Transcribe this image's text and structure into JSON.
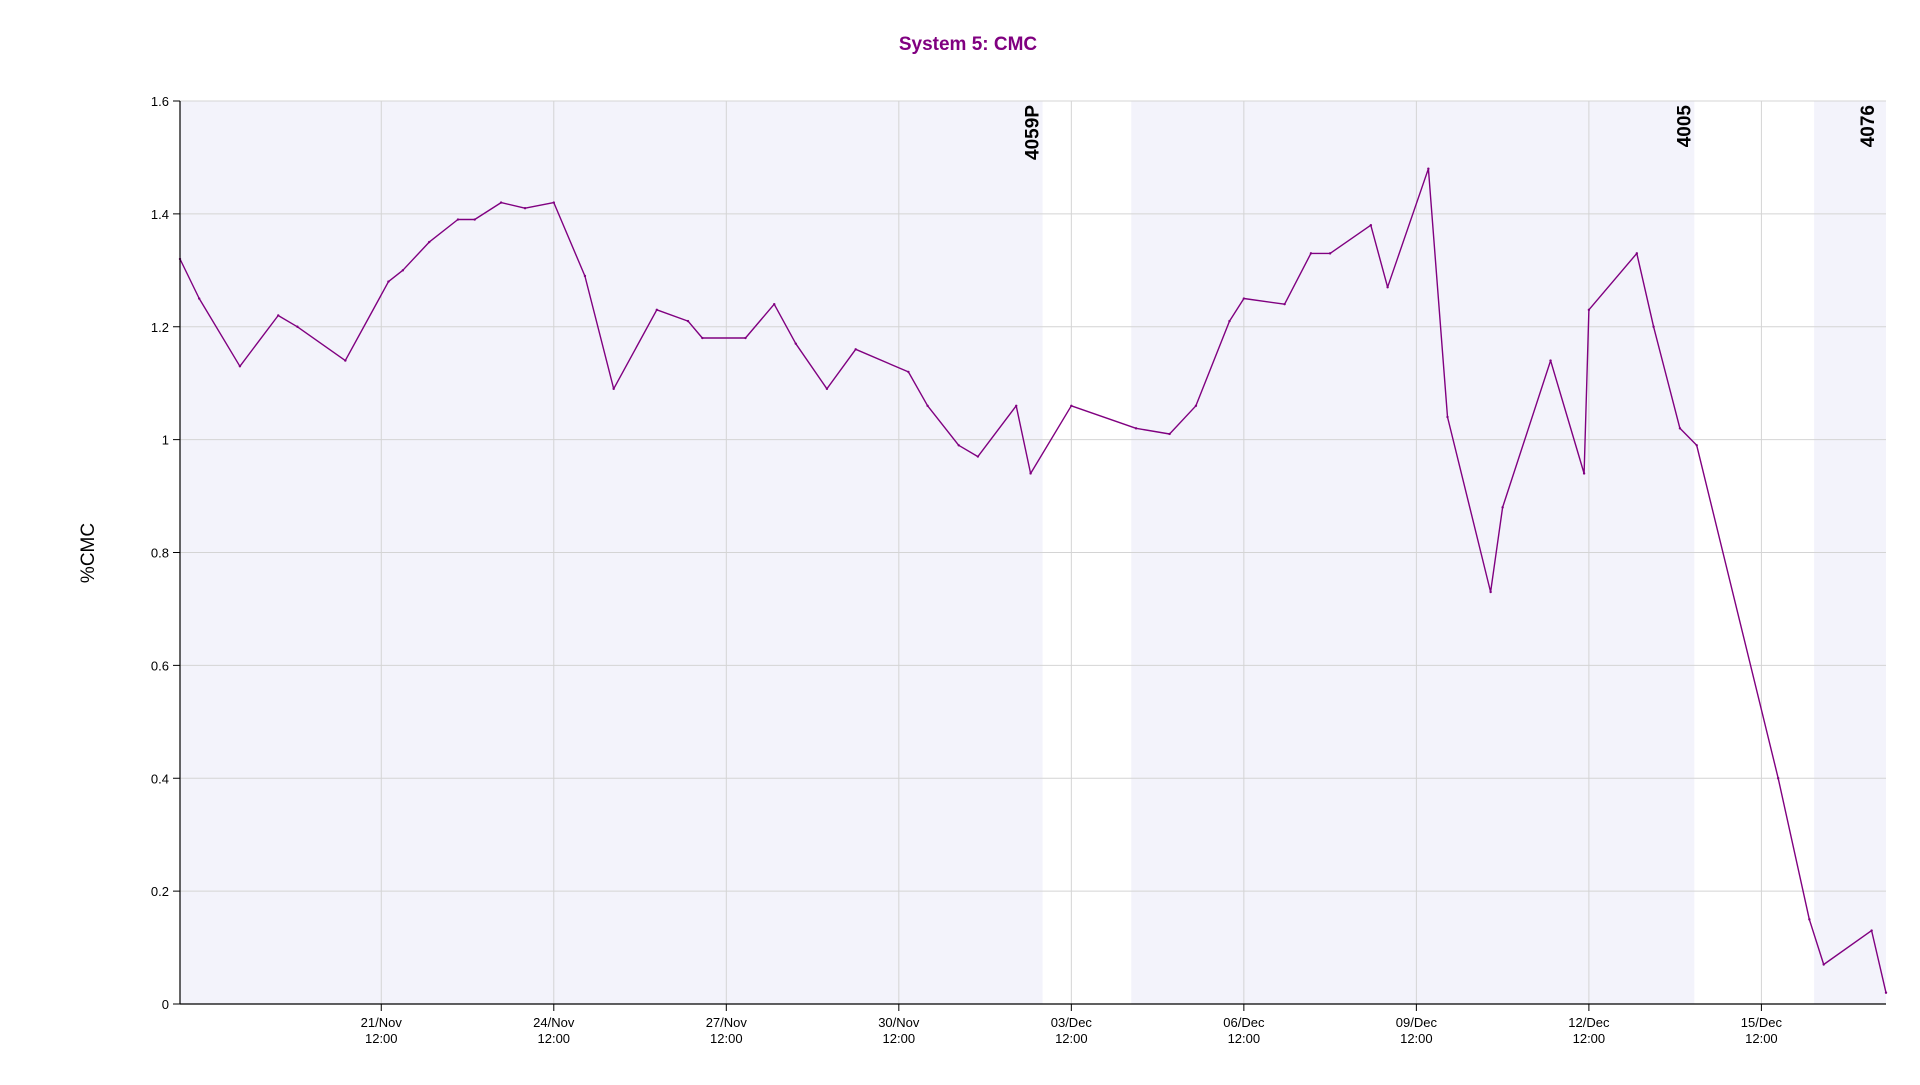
{
  "chart_data": {
    "type": "line",
    "title": "System 5: CMC",
    "ylabel": "%CMC",
    "xlabel": "",
    "ylim": [
      0,
      1.6
    ],
    "yticks": [
      0,
      0.2,
      0.4,
      0.6,
      0.8,
      1,
      1.2,
      1.4,
      1.6
    ],
    "xlim": [
      "2023-11-18T00:00",
      "2023-12-17T16:00"
    ],
    "grid": true,
    "line_color": "#800080",
    "title_color": "#800080",
    "shade_color": "#f3f3fb",
    "xticks": [
      {
        "date": "2023-11-21T12:00",
        "label1": "21/Nov",
        "label2": "12:00"
      },
      {
        "date": "2023-11-24T12:00",
        "label1": "24/Nov",
        "label2": "12:00"
      },
      {
        "date": "2023-11-27T12:00",
        "label1": "27/Nov",
        "label2": "12:00"
      },
      {
        "date": "2023-11-30T12:00",
        "label1": "30/Nov",
        "label2": "12:00"
      },
      {
        "date": "2023-12-03T12:00",
        "label1": "03/Dec",
        "label2": "12:00"
      },
      {
        "date": "2023-12-06T12:00",
        "label1": "06/Dec",
        "label2": "12:00"
      },
      {
        "date": "2023-12-09T12:00",
        "label1": "09/Dec",
        "label2": "12:00"
      },
      {
        "date": "2023-12-12T12:00",
        "label1": "12/Dec",
        "label2": "12:00"
      },
      {
        "date": "2023-12-15T12:00",
        "label1": "15/Dec",
        "label2": "12:00"
      }
    ],
    "shaded_periods": [
      {
        "start": "2023-11-18T00:00",
        "end": "2023-12-03T00:00"
      },
      {
        "start": "2023-12-04T13:00",
        "end": "2023-12-14T08:00"
      },
      {
        "start": "2023-12-16T10:00",
        "end": "2023-12-17T16:00"
      }
    ],
    "events": [
      {
        "date": "2023-12-03T00:00",
        "label": "4059P"
      },
      {
        "date": "2023-12-14T08:00",
        "label": "4005"
      },
      {
        "date": "2023-12-17T16:00",
        "label": "4076"
      }
    ],
    "series": [
      {
        "points": [
          [
            "2023-11-18T00:00",
            1.32
          ],
          [
            "2023-11-18T08:00",
            1.25
          ],
          [
            "2023-11-19T01:00",
            1.13
          ],
          [
            "2023-11-19T17:00",
            1.22
          ],
          [
            "2023-11-20T01:00",
            1.2
          ],
          [
            "2023-11-20T21:00",
            1.14
          ],
          [
            "2023-11-21T15:00",
            1.28
          ],
          [
            "2023-11-21T21:00",
            1.3
          ],
          [
            "2023-11-22T08:00",
            1.35
          ],
          [
            "2023-11-22T20:00",
            1.39
          ],
          [
            "2023-11-23T03:00",
            1.39
          ],
          [
            "2023-11-23T14:00",
            1.42
          ],
          [
            "2023-11-24T00:00",
            1.41
          ],
          [
            "2023-11-24T12:00",
            1.42
          ],
          [
            "2023-11-25T01:00",
            1.29
          ],
          [
            "2023-11-25T13:00",
            1.09
          ],
          [
            "2023-11-26T07:00",
            1.23
          ],
          [
            "2023-11-26T20:00",
            1.21
          ],
          [
            "2023-11-27T02:00",
            1.18
          ],
          [
            "2023-11-27T20:00",
            1.18
          ],
          [
            "2023-11-28T08:00",
            1.24
          ],
          [
            "2023-11-28T17:00",
            1.17
          ],
          [
            "2023-11-29T06:00",
            1.09
          ],
          [
            "2023-11-29T18:00",
            1.16
          ],
          [
            "2023-11-30T16:00",
            1.12
          ],
          [
            "2023-12-01T00:00",
            1.06
          ],
          [
            "2023-12-01T13:00",
            0.99
          ],
          [
            "2023-12-01T21:00",
            0.97
          ],
          [
            "2023-12-02T13:00",
            1.06
          ],
          [
            "2023-12-02T19:00",
            0.94
          ],
          [
            "2023-12-03T12:00",
            1.06
          ],
          [
            "2023-12-04T15:00",
            1.02
          ],
          [
            "2023-12-05T05:00",
            1.01
          ],
          [
            "2023-12-05T16:00",
            1.06
          ],
          [
            "2023-12-06T06:00",
            1.21
          ],
          [
            "2023-12-06T12:00",
            1.25
          ],
          [
            "2023-12-07T05:00",
            1.24
          ],
          [
            "2023-12-07T16:00",
            1.33
          ],
          [
            "2023-12-08T00:00",
            1.33
          ],
          [
            "2023-12-08T17:00",
            1.38
          ],
          [
            "2023-12-09T00:00",
            1.27
          ],
          [
            "2023-12-09T17:00",
            1.48
          ],
          [
            "2023-12-10T01:00",
            1.04
          ],
          [
            "2023-12-10T19:00",
            0.73
          ],
          [
            "2023-12-11T00:00",
            0.88
          ],
          [
            "2023-12-11T20:00",
            1.14
          ],
          [
            "2023-12-12T10:00",
            0.94
          ],
          [
            "2023-12-12T12:00",
            1.23
          ],
          [
            "2023-12-13T08:00",
            1.33
          ],
          [
            "2023-12-13T15:00",
            1.2
          ],
          [
            "2023-12-14T02:00",
            1.02
          ],
          [
            "2023-12-14T09:00",
            0.99
          ],
          [
            "2023-12-15T19:00",
            0.4
          ],
          [
            "2023-12-16T08:00",
            0.15
          ],
          [
            "2023-12-16T14:00",
            0.07
          ],
          [
            "2023-12-17T10:00",
            0.13
          ],
          [
            "2023-12-17T16:00",
            0.02
          ]
        ]
      }
    ]
  }
}
